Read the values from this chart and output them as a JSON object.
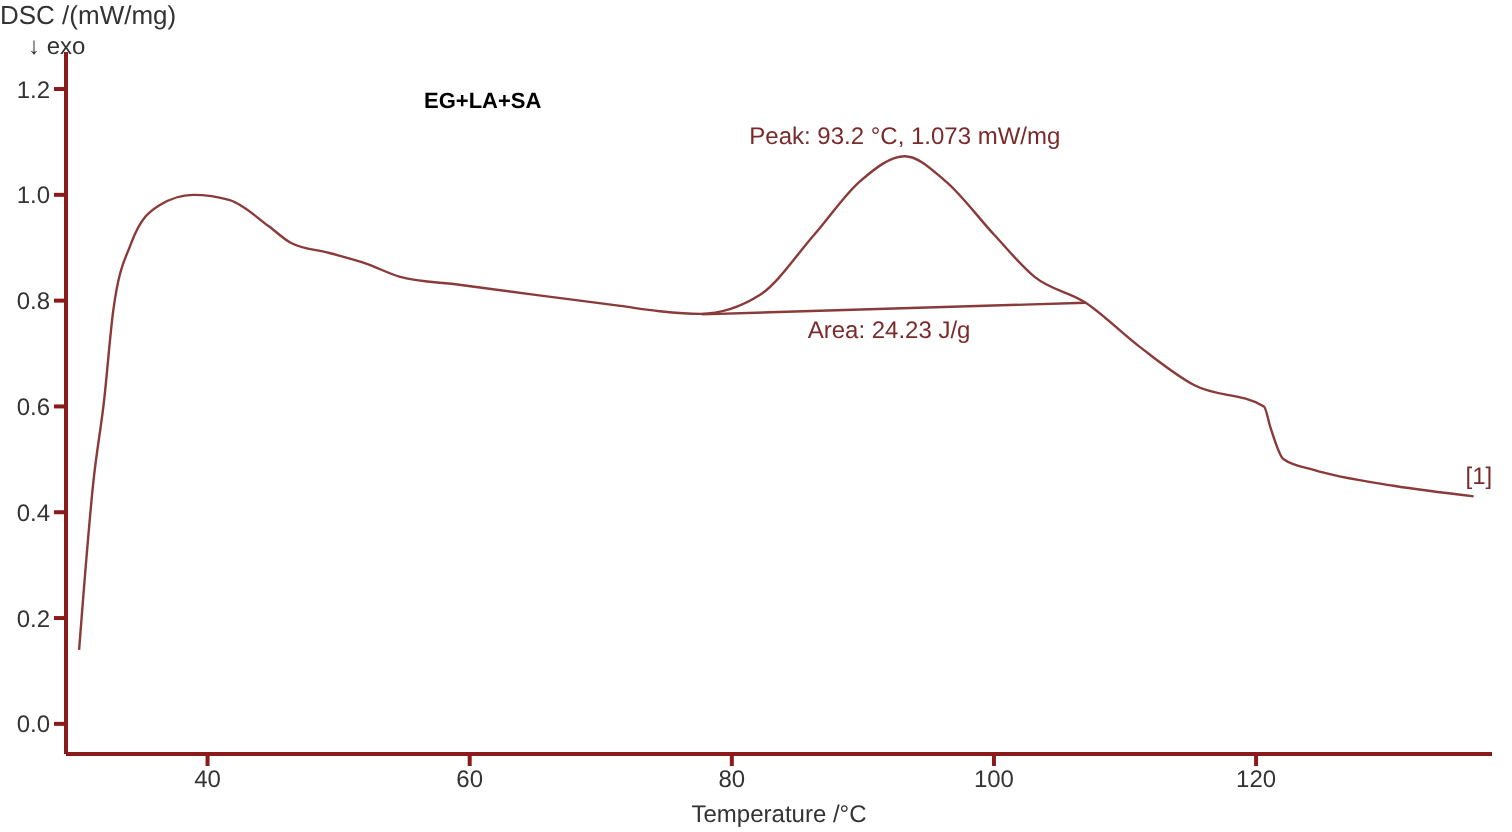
{
  "chart_data": {
    "type": "line",
    "title": "EG+LA+SA",
    "xlabel": "Temperature /°C",
    "ylabel": "DSC /(mW/mg)",
    "annotations": [
      "↓ exo",
      {
        "text": "Peak: 93.2 °C, 1.073 mW/mg",
        "x": 93.2,
        "y": 1.073
      },
      {
        "text": "Area: 24.23 J/g",
        "x": 92,
        "y": 0.785
      },
      {
        "text": "[1]",
        "x": 137,
        "y": 0.43
      }
    ],
    "xlim": [
      29.2,
      138
    ],
    "ylim": [
      -0.057,
      1.27
    ],
    "xticks": [
      40,
      60,
      80,
      100,
      120
    ],
    "yticks": [
      {
        "value": 0,
        "label": "0.0"
      },
      {
        "value": 0.2,
        "label": "0.2"
      },
      {
        "value": 0.4,
        "label": "0.4"
      },
      {
        "value": 0.6,
        "label": "0.6"
      },
      {
        "value": 0.8,
        "label": "0.8"
      },
      {
        "value": 1,
        "label": "1.0"
      },
      {
        "value": 1.2,
        "label": "1.2"
      }
    ],
    "grid": false,
    "legend": false,
    "marker": "none",
    "line_style": "solid",
    "series": [
      {
        "color": "#8b3a3a",
        "x": [
          30.2,
          31.3,
          32.1,
          32.8,
          34.2,
          36.3,
          38.9,
          41.7,
          44.7,
          46.3,
          49.3,
          52.1,
          54.7,
          59.2,
          65.3,
          71.5,
          74.5,
          77.6,
          82.1,
          86.3,
          89.8,
          93.2,
          96.3,
          100,
          103.1,
          107,
          111.1,
          115.3,
          120.6,
          121.1,
          122.1,
          124.4,
          130.5,
          136.6
        ],
        "values": [
          0.14,
          0.46,
          0.61,
          0.78,
          0.91,
          0.98,
          1.0,
          0.99,
          0.94,
          0.91,
          0.89,
          0.87,
          0.845,
          0.83,
          0.81,
          0.79,
          0.78,
          0.775,
          0.81,
          0.925,
          1.026,
          1.073,
          1.026,
          0.925,
          0.845,
          0.796,
          0.713,
          0.64,
          0.6,
          0.56,
          0.5,
          0.48,
          0.45,
          0.43
        ]
      },
      {
        "color": "#8b3a3a",
        "x": [
          77.7,
          107
        ],
        "values": [
          0.774,
          0.796
        ]
      }
    ]
  }
}
